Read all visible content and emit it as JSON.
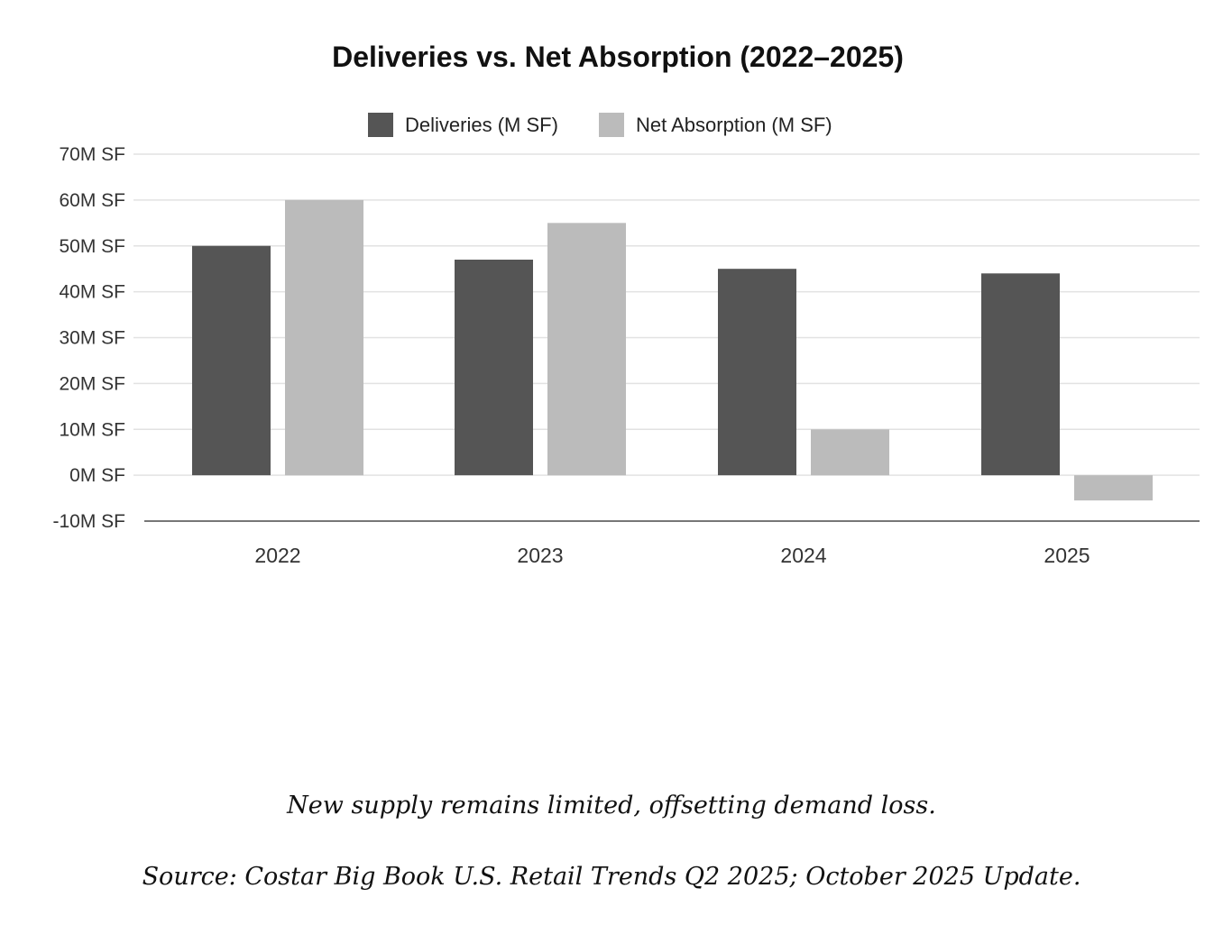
{
  "chart_data": {
    "type": "bar",
    "title": "Deliveries vs. Net Absorption (2022–2025)",
    "categories": [
      "2022",
      "2023",
      "2024",
      "2025"
    ],
    "series": [
      {
        "name": "Deliveries (M SF)",
        "color": "#555555",
        "values": [
          50,
          47,
          45,
          44
        ]
      },
      {
        "name": "Net Absorption (M SF)",
        "color": "#bbbbbb",
        "values": [
          60,
          55,
          10,
          -5.5
        ]
      }
    ],
    "ylim": [
      -10,
      70
    ],
    "yticks": [
      -10,
      0,
      10,
      20,
      30,
      40,
      50,
      60,
      70
    ],
    "ytick_labels": [
      "-10M SF",
      "0M SF",
      "10M SF",
      "20M SF",
      "30M SF",
      "40M SF",
      "50M SF",
      "60M SF",
      "70M SF"
    ],
    "xlabel": "",
    "ylabel": "",
    "grid": true,
    "legend": "top-center"
  },
  "caption": {
    "subtitle": "New supply remains limited, offsetting demand loss.",
    "source": "Source: Costar Big Book U.S. Retail Trends Q2 2025; October 2025 Update."
  }
}
